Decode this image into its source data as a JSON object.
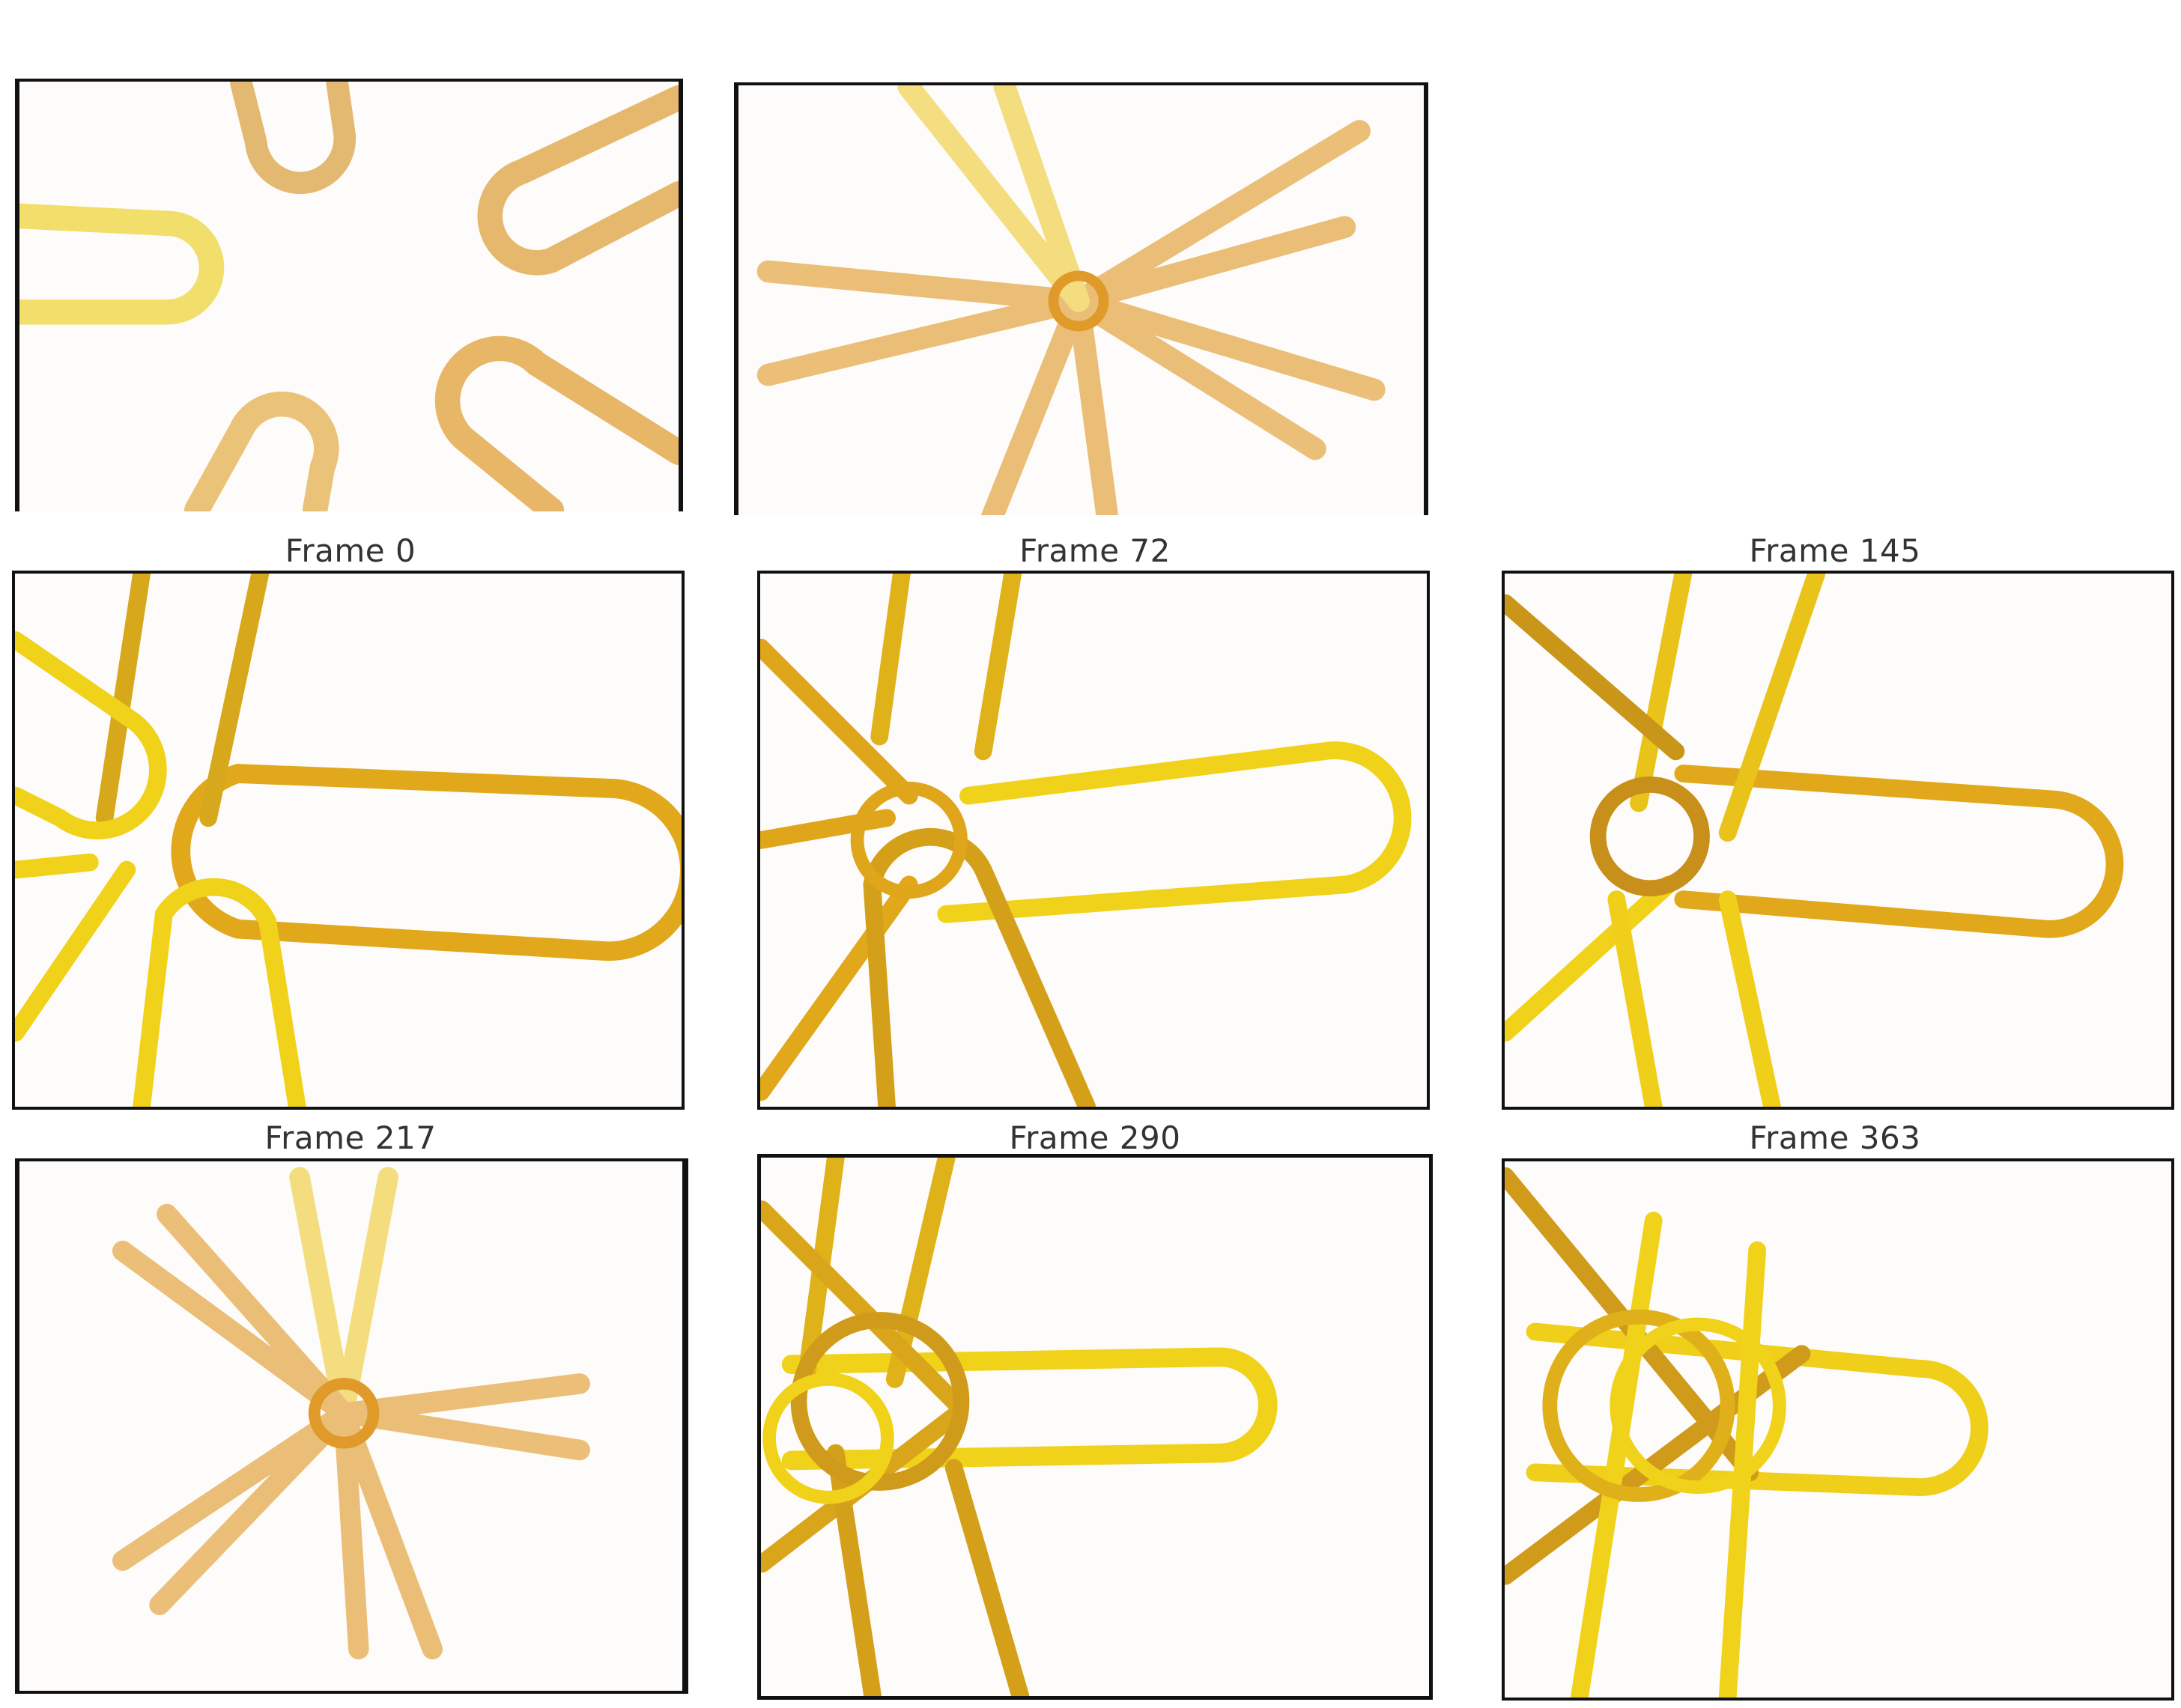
{
  "figure": {
    "colors": {
      "background": "#ffffff",
      "panel_background": "#fdfcfa",
      "border": "#111111",
      "ribbon_yellow": "#f1d21a",
      "ribbon_gold": "#e0a81a",
      "ribbon_amber": "#d99a2b",
      "caption_text": "#333333"
    },
    "frames": [
      {
        "label": "",
        "description_icon": "ribbon-loops-icon"
      },
      {
        "label": "",
        "description_icon": "ribbon-star-icon"
      },
      {
        "label": "Frame 0"
      },
      {
        "label": "Frame 72"
      },
      {
        "label": "Frame 145"
      },
      {
        "label": "Frame 217"
      },
      {
        "label": "Frame 290"
      },
      {
        "label": "Frame 363"
      }
    ]
  }
}
